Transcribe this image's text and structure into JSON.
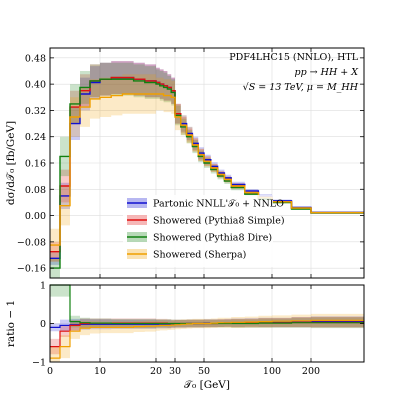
{
  "chart_data": {
    "type": "line",
    "step": true,
    "annotations": [
      "PDF4LHC15 (NNLO), HTL",
      "pp → HH + X",
      "√S = 13 TeV, μ = M_HH"
    ],
    "ylabel": "dσ/d𝒯₀ [fb/GeV]",
    "ratio_ylabel": "ratio − 1",
    "xlabel": "𝒯₀ [GeV]",
    "x_scale": "piecewise: linear 0–10, compressed 10–30, log-like 30–100, linear 100–300",
    "x_ticks": [
      "0",
      "10",
      "20",
      "30",
      "50",
      "100",
      "200"
    ],
    "y_ticks": [
      "0.48",
      "0.40",
      "0.32",
      "0.24",
      "0.16",
      "0.08",
      "0.00",
      "−0.08",
      "−0.16"
    ],
    "ylim": [
      -0.19,
      0.51
    ],
    "ratio_ticks": [
      "1",
      "0",
      "−1"
    ],
    "ratio_ylim": [
      -1,
      1
    ],
    "grid": true,
    "legend_position": "lower-center",
    "bin_edges": [
      0,
      2,
      4,
      6,
      8,
      10,
      12,
      14,
      16,
      18,
      20,
      22,
      24,
      26,
      28,
      30,
      34,
      38,
      42,
      46,
      50,
      55,
      60,
      65,
      70,
      80,
      90,
      100,
      150,
      200,
      300
    ],
    "series": [
      {
        "name": "Partonic NNLL'𝒯₀ + NNLO",
        "color": "#1010d0",
        "values": [
          -0.13,
          0.06,
          0.28,
          0.37,
          0.405,
          0.415,
          0.42,
          0.42,
          0.415,
          0.41,
          0.405,
          0.4,
          0.395,
          0.39,
          0.38,
          0.31,
          0.28,
          0.25,
          0.22,
          0.19,
          0.17,
          0.15,
          0.13,
          0.115,
          0.095,
          0.075,
          0.06,
          0.045,
          0.025,
          0.01
        ],
        "band": [
          0.02,
          0.04,
          0.05,
          0.05,
          0.05,
          0.05,
          0.05,
          0.05,
          0.05,
          0.05,
          0.045,
          0.045,
          0.045,
          0.04,
          0.04,
          0.03,
          0.025,
          0.02,
          0.02,
          0.018,
          0.015,
          0.012,
          0.01,
          0.009,
          0.008,
          0.006,
          0.005,
          0.004,
          0.003,
          0.002
        ],
        "ratio": [
          -0.1,
          -0.05,
          -0.03,
          -0.02,
          -0.02,
          -0.02,
          -0.02,
          -0.02,
          -0.02,
          -0.02,
          -0.02,
          -0.02,
          -0.02,
          -0.02,
          -0.02,
          -0.01,
          -0.01,
          0.0,
          0.0,
          0.0,
          0.01,
          0.01,
          0.01,
          0.02,
          0.02,
          0.03,
          0.03,
          0.03,
          0.04,
          0.05
        ],
        "ratio_band": [
          0.1,
          0.15,
          0.15,
          0.14,
          0.13,
          0.13,
          0.12,
          0.12,
          0.12,
          0.12,
          0.11,
          0.11,
          0.11,
          0.11,
          0.1,
          0.1,
          0.1,
          0.1,
          0.1,
          0.1,
          0.1,
          0.1,
          0.1,
          0.1,
          0.11,
          0.11,
          0.12,
          0.12,
          0.13,
          0.14
        ]
      },
      {
        "name": "Showered (Pythia8 Simple)",
        "color": "#e01010",
        "values": [
          -0.11,
          0.09,
          0.33,
          0.38,
          0.41,
          0.415,
          0.42,
          0.42,
          0.415,
          0.41,
          0.405,
          0.4,
          0.395,
          0.39,
          0.38,
          0.31,
          0.275,
          0.245,
          0.215,
          0.185,
          0.165,
          0.145,
          0.125,
          0.11,
          0.09,
          0.07,
          0.055,
          0.042,
          0.022,
          0.008
        ],
        "band": [
          0.03,
          0.05,
          0.05,
          0.05,
          0.05,
          0.05,
          0.05,
          0.05,
          0.05,
          0.05,
          0.045,
          0.045,
          0.045,
          0.04,
          0.04,
          0.03,
          0.025,
          0.02,
          0.02,
          0.018,
          0.015,
          0.012,
          0.01,
          0.009,
          0.008,
          0.006,
          0.005,
          0.004,
          0.003,
          0.002
        ],
        "ratio": [
          -0.6,
          -0.2,
          -0.05,
          0.0,
          0.01,
          0.01,
          0.01,
          0.01,
          0.01,
          0.01,
          0.01,
          0.01,
          0.01,
          0.0,
          0.0,
          0.0,
          0.0,
          0.0,
          0.0,
          0.0,
          0.0,
          0.0,
          0.01,
          0.01,
          0.01,
          0.01,
          0.02,
          0.02,
          0.03,
          0.03
        ],
        "ratio_band": [
          0.2,
          0.15,
          0.14,
          0.13,
          0.12,
          0.12,
          0.12,
          0.12,
          0.12,
          0.12,
          0.11,
          0.11,
          0.11,
          0.11,
          0.1,
          0.1,
          0.1,
          0.1,
          0.1,
          0.1,
          0.1,
          0.1,
          0.1,
          0.1,
          0.11,
          0.11,
          0.12,
          0.12,
          0.13,
          0.14
        ]
      },
      {
        "name": "Showered (Pythia8 Dire)",
        "color": "#108010",
        "values": [
          -0.16,
          0.18,
          0.34,
          0.39,
          0.41,
          0.415,
          0.415,
          0.415,
          0.41,
          0.405,
          0.4,
          0.395,
          0.39,
          0.385,
          0.375,
          0.305,
          0.27,
          0.24,
          0.21,
          0.18,
          0.16,
          0.14,
          0.12,
          0.105,
          0.085,
          0.065,
          0.05,
          0.04,
          0.02,
          0.008
        ],
        "band": [
          0.03,
          0.06,
          0.06,
          0.05,
          0.05,
          0.05,
          0.05,
          0.05,
          0.05,
          0.05,
          0.045,
          0.045,
          0.045,
          0.04,
          0.04,
          0.03,
          0.025,
          0.02,
          0.02,
          0.018,
          0.015,
          0.012,
          0.01,
          0.009,
          0.008,
          0.006,
          0.005,
          0.004,
          0.003,
          0.002
        ],
        "ratio": [
          1.0,
          1.0,
          0.05,
          0.02,
          0.01,
          0.01,
          0.0,
          0.0,
          0.0,
          0.0,
          0.0,
          0.0,
          0.0,
          0.0,
          0.0,
          0.0,
          0.0,
          0.0,
          0.0,
          0.0,
          0.0,
          0.0,
          0.0,
          0.0,
          0.0,
          0.0,
          0.01,
          0.01,
          0.02,
          0.02
        ],
        "ratio_band": [
          0.3,
          0.3,
          0.15,
          0.13,
          0.12,
          0.12,
          0.12,
          0.12,
          0.12,
          0.12,
          0.11,
          0.11,
          0.11,
          0.11,
          0.1,
          0.1,
          0.1,
          0.1,
          0.1,
          0.1,
          0.1,
          0.1,
          0.1,
          0.1,
          0.11,
          0.11,
          0.12,
          0.12,
          0.13,
          0.14
        ]
      },
      {
        "name": "Showered (Sherpa)",
        "color": "#f0a000",
        "values": [
          -0.09,
          0.03,
          0.3,
          0.33,
          0.355,
          0.36,
          0.365,
          0.37,
          0.37,
          0.37,
          0.37,
          0.37,
          0.365,
          0.365,
          0.36,
          0.3,
          0.275,
          0.245,
          0.215,
          0.185,
          0.165,
          0.145,
          0.125,
          0.11,
          0.09,
          0.07,
          0.055,
          0.042,
          0.023,
          0.009
        ],
        "band": [
          0.05,
          0.06,
          0.06,
          0.06,
          0.06,
          0.06,
          0.06,
          0.06,
          0.06,
          0.06,
          0.05,
          0.05,
          0.05,
          0.05,
          0.05,
          0.04,
          0.03,
          0.025,
          0.02,
          0.018,
          0.015,
          0.012,
          0.01,
          0.009,
          0.008,
          0.006,
          0.005,
          0.004,
          0.003,
          0.002
        ],
        "ratio": [
          -0.9,
          -0.6,
          -0.2,
          -0.12,
          -0.1,
          -0.1,
          -0.1,
          -0.1,
          -0.08,
          -0.07,
          -0.06,
          -0.05,
          -0.05,
          -0.05,
          -0.04,
          -0.03,
          -0.02,
          -0.01,
          0.0,
          0.0,
          0.0,
          0.01,
          0.02,
          0.02,
          0.03,
          0.04,
          0.05,
          0.06,
          0.07,
          0.08
        ],
        "ratio_band": [
          0.3,
          0.3,
          0.2,
          0.18,
          0.16,
          0.15,
          0.15,
          0.15,
          0.14,
          0.14,
          0.13,
          0.13,
          0.13,
          0.12,
          0.12,
          0.12,
          0.12,
          0.12,
          0.12,
          0.12,
          0.12,
          0.12,
          0.13,
          0.13,
          0.14,
          0.14,
          0.15,
          0.15,
          0.16,
          0.17
        ]
      }
    ]
  }
}
